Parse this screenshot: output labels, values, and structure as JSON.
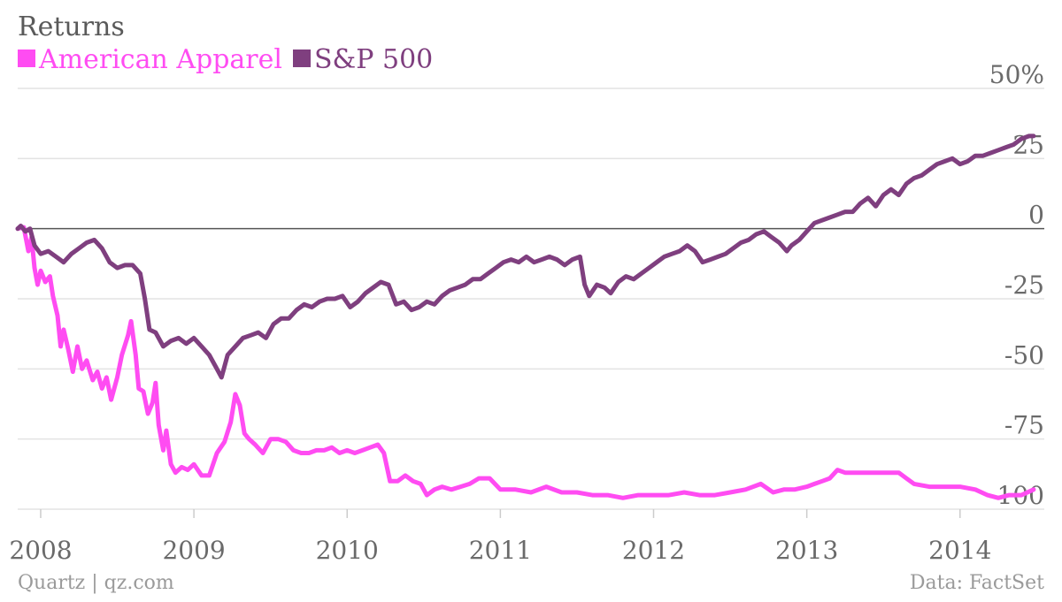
{
  "chart_data": {
    "type": "line",
    "title": "Returns",
    "subtitle": "",
    "xlabel": "",
    "ylabel": "",
    "xlim": [
      2007.85,
      2014.55
    ],
    "ylim": [
      -100,
      50
    ],
    "y_ticks": [
      {
        "value": 50,
        "label": "50%"
      },
      {
        "value": 25,
        "label": "25"
      },
      {
        "value": 0,
        "label": "0"
      },
      {
        "value": -25,
        "label": "-25"
      },
      {
        "value": -50,
        "label": "-50"
      },
      {
        "value": -75,
        "label": "-75"
      },
      {
        "value": -100,
        "label": "-100"
      }
    ],
    "x_ticks": [
      {
        "value": 2008,
        "label": "2008"
      },
      {
        "value": 2009,
        "label": "2009"
      },
      {
        "value": 2010,
        "label": "2010"
      },
      {
        "value": 2011,
        "label": "2011"
      },
      {
        "value": 2012,
        "label": "2012"
      },
      {
        "value": 2013,
        "label": "2013"
      },
      {
        "value": 2014,
        "label": "2014"
      }
    ],
    "grid": true,
    "legend_position": "top-left",
    "series": [
      {
        "name": "American Apparel",
        "color": "#ff4cf2",
        "points": [
          [
            2007.85,
            0
          ],
          [
            2007.89,
            0.5
          ],
          [
            2007.92,
            -8
          ],
          [
            2007.94,
            -3
          ],
          [
            2007.96,
            -14
          ],
          [
            2007.98,
            -20
          ],
          [
            2008.0,
            -15
          ],
          [
            2008.03,
            -19
          ],
          [
            2008.06,
            -17
          ],
          [
            2008.08,
            -24
          ],
          [
            2008.11,
            -31
          ],
          [
            2008.13,
            -42
          ],
          [
            2008.15,
            -36
          ],
          [
            2008.18,
            -43
          ],
          [
            2008.21,
            -51
          ],
          [
            2008.24,
            -42
          ],
          [
            2008.27,
            -50
          ],
          [
            2008.3,
            -47
          ],
          [
            2008.34,
            -54
          ],
          [
            2008.37,
            -51
          ],
          [
            2008.4,
            -57
          ],
          [
            2008.43,
            -53
          ],
          [
            2008.46,
            -61
          ],
          [
            2008.5,
            -53
          ],
          [
            2008.53,
            -45
          ],
          [
            2008.57,
            -38
          ],
          [
            2008.59,
            -33
          ],
          [
            2008.62,
            -45
          ],
          [
            2008.64,
            -57
          ],
          [
            2008.67,
            -58
          ],
          [
            2008.7,
            -66
          ],
          [
            2008.73,
            -62
          ],
          [
            2008.75,
            -55
          ],
          [
            2008.77,
            -70
          ],
          [
            2008.8,
            -79
          ],
          [
            2008.82,
            -72
          ],
          [
            2008.85,
            -84
          ],
          [
            2008.88,
            -87
          ],
          [
            2008.92,
            -85
          ],
          [
            2008.96,
            -86
          ],
          [
            2009.0,
            -84
          ],
          [
            2009.05,
            -88
          ],
          [
            2009.1,
            -88
          ],
          [
            2009.15,
            -80
          ],
          [
            2009.2,
            -76
          ],
          [
            2009.24,
            -69
          ],
          [
            2009.27,
            -59
          ],
          [
            2009.3,
            -63
          ],
          [
            2009.33,
            -73
          ],
          [
            2009.36,
            -75
          ],
          [
            2009.4,
            -77
          ],
          [
            2009.45,
            -80
          ],
          [
            2009.5,
            -75
          ],
          [
            2009.55,
            -75
          ],
          [
            2009.6,
            -76
          ],
          [
            2009.65,
            -79
          ],
          [
            2009.7,
            -80
          ],
          [
            2009.75,
            -80
          ],
          [
            2009.8,
            -79
          ],
          [
            2009.85,
            -79
          ],
          [
            2009.9,
            -78
          ],
          [
            2009.95,
            -80
          ],
          [
            2010.0,
            -79
          ],
          [
            2010.05,
            -80
          ],
          [
            2010.1,
            -79
          ],
          [
            2010.15,
            -78
          ],
          [
            2010.2,
            -77
          ],
          [
            2010.24,
            -80
          ],
          [
            2010.28,
            -90
          ],
          [
            2010.33,
            -90
          ],
          [
            2010.38,
            -88
          ],
          [
            2010.43,
            -90
          ],
          [
            2010.48,
            -91
          ],
          [
            2010.52,
            -95
          ],
          [
            2010.57,
            -93
          ],
          [
            2010.62,
            -92
          ],
          [
            2010.68,
            -93
          ],
          [
            2010.74,
            -92
          ],
          [
            2010.8,
            -91
          ],
          [
            2010.86,
            -89
          ],
          [
            2010.93,
            -89
          ],
          [
            2011.0,
            -93
          ],
          [
            2011.1,
            -93
          ],
          [
            2011.2,
            -94
          ],
          [
            2011.3,
            -92
          ],
          [
            2011.4,
            -94
          ],
          [
            2011.5,
            -94
          ],
          [
            2011.6,
            -95
          ],
          [
            2011.7,
            -95
          ],
          [
            2011.8,
            -96
          ],
          [
            2011.9,
            -95
          ],
          [
            2012.0,
            -95
          ],
          [
            2012.1,
            -95
          ],
          [
            2012.2,
            -94
          ],
          [
            2012.3,
            -95
          ],
          [
            2012.4,
            -95
          ],
          [
            2012.5,
            -94
          ],
          [
            2012.6,
            -93
          ],
          [
            2012.7,
            -91
          ],
          [
            2012.78,
            -94
          ],
          [
            2012.85,
            -93
          ],
          [
            2012.92,
            -93
          ],
          [
            2013.0,
            -92
          ],
          [
            2013.05,
            -91
          ],
          [
            2013.1,
            -90
          ],
          [
            2013.15,
            -89
          ],
          [
            2013.2,
            -86
          ],
          [
            2013.25,
            -87
          ],
          [
            2013.3,
            -87
          ],
          [
            2013.4,
            -87
          ],
          [
            2013.5,
            -87
          ],
          [
            2013.6,
            -87
          ],
          [
            2013.65,
            -89
          ],
          [
            2013.7,
            -91
          ],
          [
            2013.8,
            -92
          ],
          [
            2013.9,
            -92
          ],
          [
            2014.0,
            -92
          ],
          [
            2014.1,
            -93
          ],
          [
            2014.18,
            -95
          ],
          [
            2014.25,
            -96
          ],
          [
            2014.32,
            -95
          ],
          [
            2014.4,
            -95
          ],
          [
            2014.48,
            -93
          ]
        ]
      },
      {
        "name": "S&P 500",
        "color": "#7f3f7f",
        "points": [
          [
            2007.85,
            0
          ],
          [
            2007.87,
            1
          ],
          [
            2007.9,
            -1
          ],
          [
            2007.93,
            0
          ],
          [
            2007.96,
            -6
          ],
          [
            2008.0,
            -9
          ],
          [
            2008.05,
            -8
          ],
          [
            2008.1,
            -10
          ],
          [
            2008.15,
            -12
          ],
          [
            2008.2,
            -9
          ],
          [
            2008.25,
            -7
          ],
          [
            2008.3,
            -5
          ],
          [
            2008.35,
            -4
          ],
          [
            2008.4,
            -7
          ],
          [
            2008.45,
            -12
          ],
          [
            2008.5,
            -14
          ],
          [
            2008.55,
            -13
          ],
          [
            2008.6,
            -13
          ],
          [
            2008.65,
            -16
          ],
          [
            2008.68,
            -25
          ],
          [
            2008.71,
            -36
          ],
          [
            2008.75,
            -37
          ],
          [
            2008.8,
            -42
          ],
          [
            2008.85,
            -40
          ],
          [
            2008.9,
            -39
          ],
          [
            2008.95,
            -41
          ],
          [
            2009.0,
            -39
          ],
          [
            2009.05,
            -42
          ],
          [
            2009.1,
            -45
          ],
          [
            2009.15,
            -50
          ],
          [
            2009.18,
            -53
          ],
          [
            2009.22,
            -45
          ],
          [
            2009.27,
            -42
          ],
          [
            2009.32,
            -39
          ],
          [
            2009.37,
            -38
          ],
          [
            2009.42,
            -37
          ],
          [
            2009.47,
            -39
          ],
          [
            2009.52,
            -34
          ],
          [
            2009.57,
            -32
          ],
          [
            2009.62,
            -32
          ],
          [
            2009.67,
            -29
          ],
          [
            2009.72,
            -27
          ],
          [
            2009.77,
            -28
          ],
          [
            2009.82,
            -26
          ],
          [
            2009.87,
            -25
          ],
          [
            2009.92,
            -25
          ],
          [
            2009.97,
            -24
          ],
          [
            2010.02,
            -28
          ],
          [
            2010.07,
            -26
          ],
          [
            2010.12,
            -23
          ],
          [
            2010.17,
            -21
          ],
          [
            2010.22,
            -19
          ],
          [
            2010.27,
            -20
          ],
          [
            2010.32,
            -27
          ],
          [
            2010.37,
            -26
          ],
          [
            2010.42,
            -29
          ],
          [
            2010.47,
            -28
          ],
          [
            2010.52,
            -26
          ],
          [
            2010.57,
            -27
          ],
          [
            2010.62,
            -24
          ],
          [
            2010.67,
            -22
          ],
          [
            2010.72,
            -21
          ],
          [
            2010.77,
            -20
          ],
          [
            2010.82,
            -18
          ],
          [
            2010.87,
            -18
          ],
          [
            2010.92,
            -16
          ],
          [
            2010.97,
            -14
          ],
          [
            2011.02,
            -12
          ],
          [
            2011.07,
            -11
          ],
          [
            2011.12,
            -12
          ],
          [
            2011.17,
            -10
          ],
          [
            2011.22,
            -12
          ],
          [
            2011.27,
            -11
          ],
          [
            2011.32,
            -10
          ],
          [
            2011.37,
            -11
          ],
          [
            2011.42,
            -13
          ],
          [
            2011.47,
            -11
          ],
          [
            2011.52,
            -10
          ],
          [
            2011.55,
            -20
          ],
          [
            2011.58,
            -24
          ],
          [
            2011.63,
            -20
          ],
          [
            2011.68,
            -21
          ],
          [
            2011.72,
            -23
          ],
          [
            2011.77,
            -19
          ],
          [
            2011.82,
            -17
          ],
          [
            2011.87,
            -18
          ],
          [
            2011.92,
            -16
          ],
          [
            2011.97,
            -14
          ],
          [
            2012.02,
            -12
          ],
          [
            2012.07,
            -10
          ],
          [
            2012.12,
            -9
          ],
          [
            2012.17,
            -8
          ],
          [
            2012.22,
            -6
          ],
          [
            2012.27,
            -8
          ],
          [
            2012.32,
            -12
          ],
          [
            2012.37,
            -11
          ],
          [
            2012.42,
            -10
          ],
          [
            2012.47,
            -9
          ],
          [
            2012.52,
            -7
          ],
          [
            2012.57,
            -5
          ],
          [
            2012.62,
            -4
          ],
          [
            2012.67,
            -2
          ],
          [
            2012.72,
            -1
          ],
          [
            2012.77,
            -3
          ],
          [
            2012.82,
            -5
          ],
          [
            2012.87,
            -8
          ],
          [
            2012.9,
            -6
          ],
          [
            2012.95,
            -4
          ],
          [
            2013.0,
            -1
          ],
          [
            2013.05,
            2
          ],
          [
            2013.1,
            3
          ],
          [
            2013.15,
            4
          ],
          [
            2013.2,
            5
          ],
          [
            2013.25,
            6
          ],
          [
            2013.3,
            6
          ],
          [
            2013.35,
            9
          ],
          [
            2013.4,
            11
          ],
          [
            2013.45,
            8
          ],
          [
            2013.5,
            12
          ],
          [
            2013.55,
            14
          ],
          [
            2013.6,
            12
          ],
          [
            2013.65,
            16
          ],
          [
            2013.7,
            18
          ],
          [
            2013.75,
            19
          ],
          [
            2013.8,
            21
          ],
          [
            2013.85,
            23
          ],
          [
            2013.9,
            24
          ],
          [
            2013.95,
            25
          ],
          [
            2014.0,
            23
          ],
          [
            2014.05,
            24
          ],
          [
            2014.1,
            26
          ],
          [
            2014.15,
            26
          ],
          [
            2014.2,
            27
          ],
          [
            2014.25,
            28
          ],
          [
            2014.3,
            29
          ],
          [
            2014.35,
            30
          ],
          [
            2014.4,
            32
          ],
          [
            2014.45,
            33
          ],
          [
            2014.48,
            33
          ]
        ]
      }
    ]
  },
  "footer": {
    "source_left": "Quartz | qz.com",
    "source_right": "Data: FactSet"
  }
}
